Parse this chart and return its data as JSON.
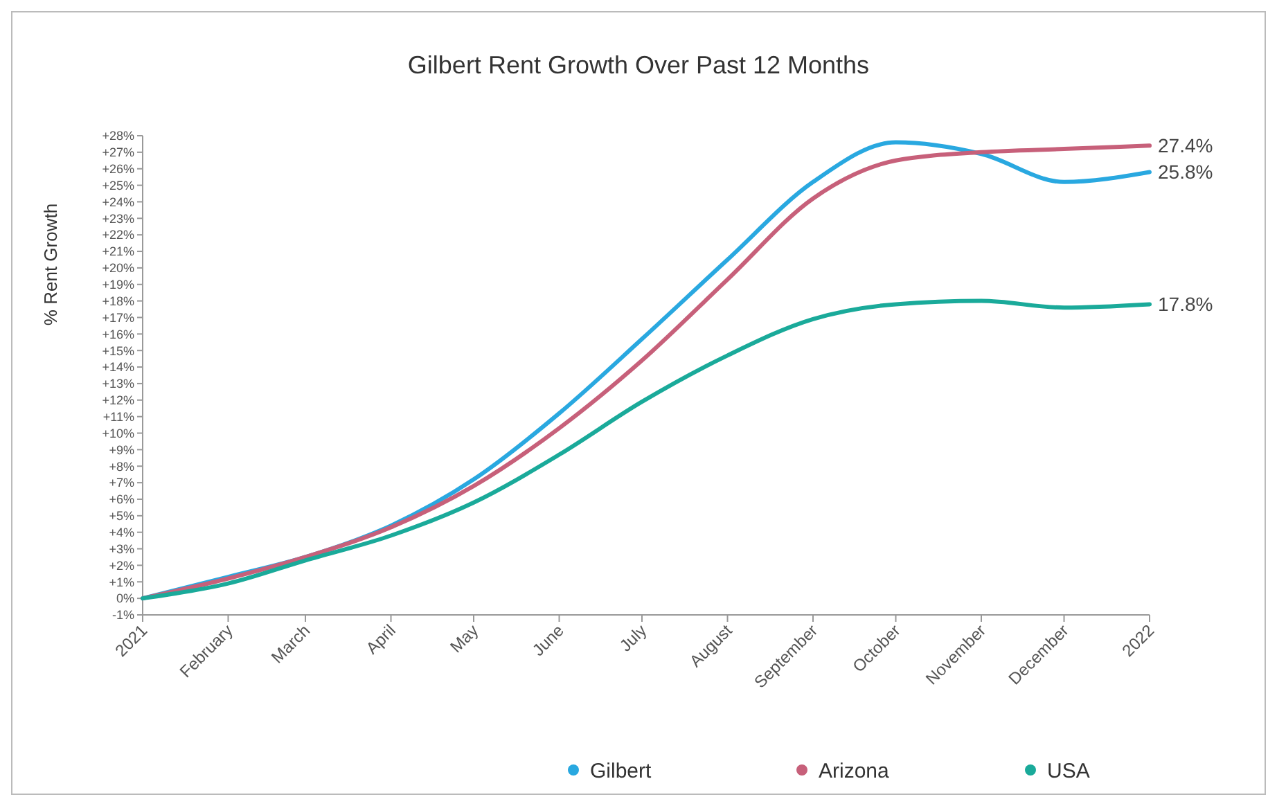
{
  "chart_data": {
    "type": "line",
    "title": "Gilbert Rent Growth Over Past 12 Months",
    "ylabel": "% Rent Growth",
    "x": [
      "2021-01",
      "2021-02",
      "2021-03",
      "2021-04",
      "2021-05",
      "2021-06",
      "2021-07",
      "2021-08",
      "2021-09",
      "2021-10",
      "2021-11",
      "2021-12",
      "2022-01"
    ],
    "series": [
      {
        "name": "Gilbert",
        "color": "#29a8e0",
        "values": [
          0,
          1.3,
          2.5,
          4.4,
          7.2,
          11.2,
          15.7,
          20.5,
          25.2,
          27.6,
          26.9,
          25.2,
          25.8
        ],
        "value_labels": [
          null,
          null,
          null,
          null,
          null,
          null,
          null,
          null,
          null,
          null,
          null,
          null,
          "25.8%"
        ]
      },
      {
        "name": "Arizona",
        "color": "#c7607a",
        "values": [
          0,
          1.2,
          2.5,
          4.3,
          6.8,
          10.3,
          14.4,
          19.3,
          24.2,
          26.5,
          27.0,
          27.2,
          27.4
        ],
        "value_labels": [
          null,
          null,
          null,
          null,
          null,
          null,
          null,
          null,
          null,
          null,
          null,
          null,
          "27.4%"
        ]
      },
      {
        "name": "USA",
        "color": "#1aaa9a",
        "values": [
          0,
          0.9,
          2.3,
          3.8,
          5.8,
          8.7,
          11.9,
          14.7,
          16.9,
          17.8,
          18.0,
          17.6,
          17.8
        ],
        "value_labels": [
          null,
          null,
          null,
          null,
          null,
          null,
          null,
          null,
          null,
          null,
          null,
          null,
          "17.8%"
        ]
      }
    ],
    "xlim": [
      "2021-01",
      "2022-01"
    ],
    "xticks": [
      {
        "value": "2021-01",
        "label": "2021"
      },
      {
        "value": "2021-02",
        "label": "February"
      },
      {
        "value": "2021-03",
        "label": "March"
      },
      {
        "value": "2021-04",
        "label": "April"
      },
      {
        "value": "2021-05",
        "label": "May"
      },
      {
        "value": "2021-06",
        "label": "June"
      },
      {
        "value": "2021-07",
        "label": "July"
      },
      {
        "value": "2021-08",
        "label": "August"
      },
      {
        "value": "2021-09",
        "label": "September"
      },
      {
        "value": "2021-10",
        "label": "October"
      },
      {
        "value": "2021-11",
        "label": "November"
      },
      {
        "value": "2021-12",
        "label": "December"
      },
      {
        "value": "2022-01",
        "label": "2022"
      }
    ],
    "ylim": [
      -1,
      28
    ],
    "yticks": [
      {
        "value": -1,
        "label": "-1%"
      },
      {
        "value": 0,
        "label": "0%"
      },
      {
        "value": 1,
        "label": "+1%"
      },
      {
        "value": 2,
        "label": "+2%"
      },
      {
        "value": 3,
        "label": "+3%"
      },
      {
        "value": 4,
        "label": "+4%"
      },
      {
        "value": 5,
        "label": "+5%"
      },
      {
        "value": 6,
        "label": "+6%"
      },
      {
        "value": 7,
        "label": "+7%"
      },
      {
        "value": 8,
        "label": "+8%"
      },
      {
        "value": 9,
        "label": "+9%"
      },
      {
        "value": 10,
        "label": "+10%"
      },
      {
        "value": 11,
        "label": "+11%"
      },
      {
        "value": 12,
        "label": "+12%"
      },
      {
        "value": 13,
        "label": "+13%"
      },
      {
        "value": 14,
        "label": "+14%"
      },
      {
        "value": 15,
        "label": "+15%"
      },
      {
        "value": 16,
        "label": "+16%"
      },
      {
        "value": 17,
        "label": "+17%"
      },
      {
        "value": 18,
        "label": "+18%"
      },
      {
        "value": 19,
        "label": "+19%"
      },
      {
        "value": 20,
        "label": "+20%"
      },
      {
        "value": 21,
        "label": "+21%"
      },
      {
        "value": 22,
        "label": "+22%"
      },
      {
        "value": 23,
        "label": "+23%"
      },
      {
        "value": 24,
        "label": "+24%"
      },
      {
        "value": 25,
        "label": "+25%"
      },
      {
        "value": 26,
        "label": "+26%"
      },
      {
        "value": 27,
        "label": "+27%"
      },
      {
        "value": 28,
        "label": "+28%"
      }
    ],
    "legend": "bottom right",
    "marker": "none",
    "line_style": "solid"
  }
}
